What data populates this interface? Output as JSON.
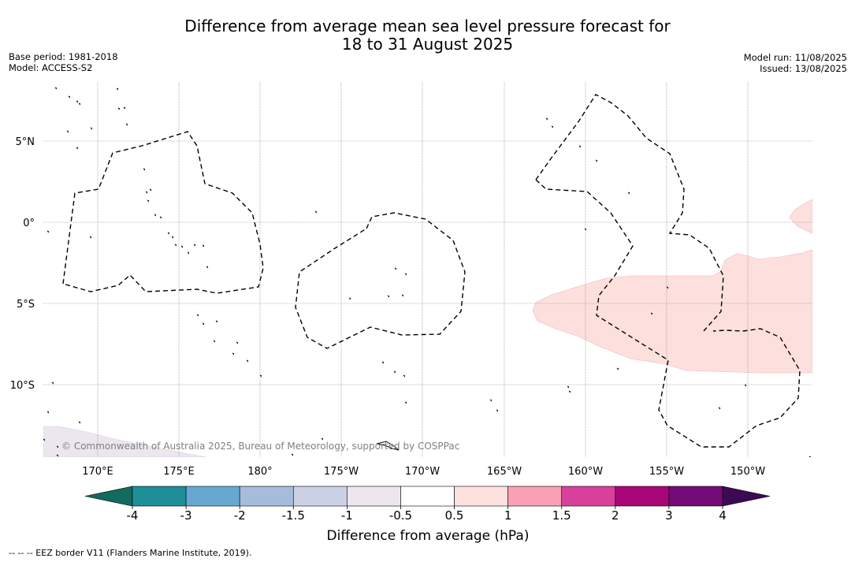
{
  "title_line1": "Difference from average mean sea level pressure forecast for",
  "title_line2": "18 to 31 August 2025",
  "base_period": "Base period: 1981-2018",
  "model": "Model: ACCESS-S2",
  "model_run": "Model run: 11/08/2025",
  "issued": "Issued: 13/08/2025",
  "copyright": "© Commonwealth of Australia 2025, Bureau of Meteorology, supported by COSPPac",
  "footnote": "-- -- -- EEZ border V11 (Flanders Marine Institute, 2019).",
  "lat_labels": [
    "5°N",
    "0°",
    "5°S",
    "10°S"
  ],
  "lon_labels": [
    "170°E",
    "175°E",
    "180°",
    "175°W",
    "170°W",
    "165°W",
    "160°W",
    "155°W",
    "150°W"
  ],
  "colorbar": {
    "label": "Difference from average (hPa)",
    "ticks": [
      "-4",
      "-3",
      "-2",
      "-1.5",
      "-1",
      "-0.5",
      "0.5",
      "1",
      "1.5",
      "2",
      "3",
      "4"
    ],
    "under_color": "#126b5e",
    "over_color": "#3c0a52",
    "colors": [
      "#1e8f99",
      "#66a8d2",
      "#a6bcdc",
      "#ccd0e4",
      "#ece6ef",
      "#ffffff",
      "#fde0de",
      "#f7a0b6",
      "#d8409c",
      "#a80678",
      "#740b78"
    ]
  }
}
